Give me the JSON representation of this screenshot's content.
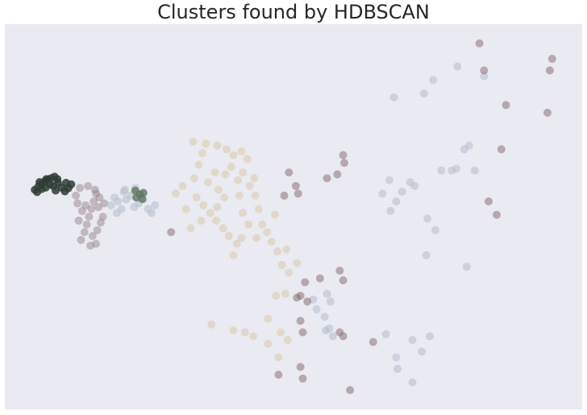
{
  "chart_data": {
    "type": "scatter",
    "title": "Clusters found by HDBSCAN",
    "xlabel": "",
    "ylabel": "",
    "xlim": [
      0,
      100
    ],
    "ylim": [
      0,
      100
    ],
    "axes_visible": false,
    "grid": false,
    "background_color": "#eaeaf2",
    "series": [
      {
        "color": "#2e3d35",
        "opacity": 0.85,
        "points": [
          [
            5.2,
            57.0
          ],
          [
            5.8,
            57.8
          ],
          [
            6.3,
            58.5
          ],
          [
            6.9,
            59.2
          ],
          [
            7.4,
            59.6
          ],
          [
            8.0,
            60.0
          ],
          [
            8.6,
            60.4
          ],
          [
            9.1,
            59.8
          ],
          [
            5.6,
            56.4
          ],
          [
            6.4,
            57.2
          ],
          [
            7.1,
            57.6
          ],
          [
            7.8,
            58.4
          ],
          [
            8.4,
            58.0
          ],
          [
            9.2,
            58.8
          ],
          [
            9.8,
            57.6
          ],
          [
            10.4,
            56.6
          ],
          [
            11.0,
            57.4
          ],
          [
            11.5,
            58.4
          ],
          [
            10.6,
            58.8
          ],
          [
            6.0,
            59.0
          ],
          [
            7.2,
            59.8
          ],
          [
            8.8,
            56.8
          ]
        ]
      },
      {
        "color": "#8e7d7e",
        "opacity": 0.45,
        "points": [
          [
            13.2,
            44.0
          ],
          [
            13.8,
            46.0
          ],
          [
            14.2,
            48.0
          ],
          [
            14.6,
            50.0
          ],
          [
            15.0,
            52.0
          ],
          [
            15.4,
            54.0
          ],
          [
            14.0,
            53.0
          ],
          [
            15.8,
            56.0
          ],
          [
            16.4,
            55.0
          ],
          [
            15.2,
            45.0
          ],
          [
            16.0,
            46.5
          ],
          [
            16.6,
            48.5
          ],
          [
            13.4,
            51.5
          ],
          [
            12.6,
            53.5
          ],
          [
            12.3,
            55.5
          ],
          [
            13.0,
            57.5
          ],
          [
            14.4,
            58.0
          ],
          [
            15.6,
            57.0
          ],
          [
            16.2,
            52.5
          ],
          [
            14.8,
            42.5
          ],
          [
            15.8,
            43.0
          ],
          [
            17.0,
            50.0
          ],
          [
            17.2,
            53.5
          ],
          [
            12.8,
            49.0
          ]
        ]
      },
      {
        "color": "#b5c0cf",
        "opacity": 0.6,
        "points": [
          [
            18.4,
            53.0
          ],
          [
            19.0,
            55.0
          ],
          [
            19.6,
            54.0
          ],
          [
            20.2,
            52.0
          ],
          [
            21.0,
            54.5
          ],
          [
            21.8,
            55.5
          ],
          [
            22.4,
            52.5
          ],
          [
            23.2,
            53.5
          ],
          [
            24.0,
            54.5
          ],
          [
            24.8,
            52.0
          ],
          [
            25.4,
            51.0
          ],
          [
            26.0,
            53.0
          ],
          [
            20.6,
            56.5
          ],
          [
            19.4,
            51.0
          ],
          [
            65.4,
            56.0
          ],
          [
            66.6,
            59.5
          ],
          [
            67.8,
            54.0
          ],
          [
            68.8,
            56.5
          ],
          [
            70.2,
            59.0
          ],
          [
            71.0,
            58.0
          ],
          [
            66.8,
            51.5
          ],
          [
            73.2,
            49.5
          ],
          [
            74.6,
            46.5
          ],
          [
            75.6,
            62.0
          ],
          [
            77.4,
            62.0
          ],
          [
            78.2,
            62.5
          ],
          [
            79.6,
            67.5
          ],
          [
            80.4,
            68.5
          ],
          [
            81.4,
            62.0
          ],
          [
            80.0,
            37.0
          ],
          [
            73.0,
            40.0
          ],
          [
            73.6,
            19.0
          ],
          [
            66.0,
            19.5
          ],
          [
            68.0,
            10.5
          ],
          [
            70.6,
            7.0
          ],
          [
            72.2,
            15.0
          ],
          [
            67.8,
            13.5
          ],
          [
            70.6,
            18.0
          ],
          [
            67.4,
            81.0
          ],
          [
            72.6,
            82.0
          ],
          [
            74.2,
            85.5
          ],
          [
            78.4,
            89.0
          ],
          [
            83.0,
            86.5
          ],
          [
            55.8,
            30.0
          ],
          [
            56.4,
            28.0
          ],
          [
            55.6,
            20.5
          ],
          [
            56.8,
            19.0
          ],
          [
            55.4,
            24.0
          ],
          [
            56.2,
            21.0
          ],
          [
            54.0,
            26.0
          ],
          [
            53.4,
            28.5
          ],
          [
            20.8,
            57.0
          ],
          [
            22.6,
            57.5
          ]
        ]
      },
      {
        "color": "#5e7560",
        "opacity": 0.8,
        "points": [
          [
            22.8,
            55.0
          ],
          [
            23.4,
            55.8
          ],
          [
            24.0,
            56.2
          ],
          [
            22.6,
            56.8
          ],
          [
            23.8,
            54.6
          ]
        ]
      },
      {
        "color": "#d7c49b",
        "opacity": 0.45,
        "points": [
          [
            32.8,
            60.0
          ],
          [
            33.6,
            63.5
          ],
          [
            34.2,
            66.5
          ],
          [
            35.2,
            59.0
          ],
          [
            36.4,
            61.5
          ],
          [
            37.0,
            57.0
          ],
          [
            38.2,
            61.0
          ],
          [
            39.2,
            63.0
          ],
          [
            40.4,
            59.5
          ],
          [
            41.2,
            61.5
          ],
          [
            42.4,
            58.0
          ],
          [
            43.2,
            60.0
          ],
          [
            33.2,
            55.0
          ],
          [
            34.4,
            53.0
          ],
          [
            35.6,
            51.0
          ],
          [
            36.6,
            49.0
          ],
          [
            37.8,
            47.0
          ],
          [
            38.8,
            45.0
          ],
          [
            40.2,
            43.0
          ],
          [
            41.2,
            51.0
          ],
          [
            42.2,
            48.0
          ],
          [
            43.6,
            44.5
          ],
          [
            44.6,
            48.0
          ],
          [
            45.4,
            46.0
          ],
          [
            46.2,
            43.5
          ],
          [
            47.2,
            41.0
          ],
          [
            48.0,
            37.5
          ],
          [
            49.2,
            35.5
          ],
          [
            42.0,
            65.0
          ],
          [
            41.0,
            67.0
          ],
          [
            32.6,
            69.5
          ],
          [
            34.8,
            69.0
          ],
          [
            36.8,
            68.5
          ],
          [
            38.4,
            67.5
          ],
          [
            39.6,
            66.0
          ],
          [
            30.8,
            58.0
          ],
          [
            29.6,
            56.0
          ],
          [
            31.4,
            52.0
          ],
          [
            32.2,
            47.0
          ],
          [
            39.6,
            40.0
          ],
          [
            35.8,
            22.0
          ],
          [
            39.6,
            20.5
          ],
          [
            41.6,
            20.0
          ],
          [
            43.0,
            19.0
          ],
          [
            45.6,
            17.0
          ],
          [
            47.4,
            13.5
          ],
          [
            47.8,
            20.0
          ],
          [
            49.0,
            18.0
          ],
          [
            45.6,
            23.5
          ],
          [
            47.0,
            29.5
          ],
          [
            48.6,
            30.0
          ],
          [
            41.0,
            44.5
          ],
          [
            44.0,
            52.0
          ],
          [
            46.8,
            50.5
          ],
          [
            48.8,
            41.5
          ],
          [
            50.6,
            38.0
          ],
          [
            43.4,
            55.5
          ],
          [
            38.0,
            55.0
          ],
          [
            40.6,
            55.5
          ],
          [
            34.0,
            49.0
          ],
          [
            36.8,
            52.5
          ]
        ]
      },
      {
        "color": "#8c7174",
        "opacity": 0.55,
        "points": [
          [
            50.4,
            58.0
          ],
          [
            50.8,
            56.0
          ],
          [
            49.2,
            61.5
          ],
          [
            48.4,
            55.5
          ],
          [
            55.8,
            60.0
          ],
          [
            57.6,
            61.0
          ],
          [
            58.8,
            64.0
          ],
          [
            58.6,
            66.0
          ],
          [
            28.8,
            46.0
          ],
          [
            54.6,
            34.0
          ],
          [
            58.0,
            36.0
          ],
          [
            58.6,
            33.5
          ],
          [
            52.4,
            28.0
          ],
          [
            52.0,
            33.0
          ],
          [
            51.2,
            29.5
          ],
          [
            51.6,
            20.0
          ],
          [
            50.6,
            29.0
          ],
          [
            51.2,
            23.0
          ],
          [
            58.0,
            20.0
          ],
          [
            58.6,
            19.0
          ],
          [
            63.8,
            17.5
          ],
          [
            47.4,
            9.0
          ],
          [
            51.2,
            11.0
          ],
          [
            51.6,
            8.0
          ],
          [
            59.8,
            5.0
          ],
          [
            82.2,
            95.0
          ],
          [
            83.0,
            88.0
          ],
          [
            86.8,
            79.0
          ],
          [
            94.4,
            88.0
          ],
          [
            94.8,
            91.0
          ],
          [
            86.0,
            67.5
          ],
          [
            83.8,
            54.0
          ],
          [
            85.2,
            50.5
          ],
          [
            94.0,
            77.0
          ]
        ]
      }
    ]
  }
}
